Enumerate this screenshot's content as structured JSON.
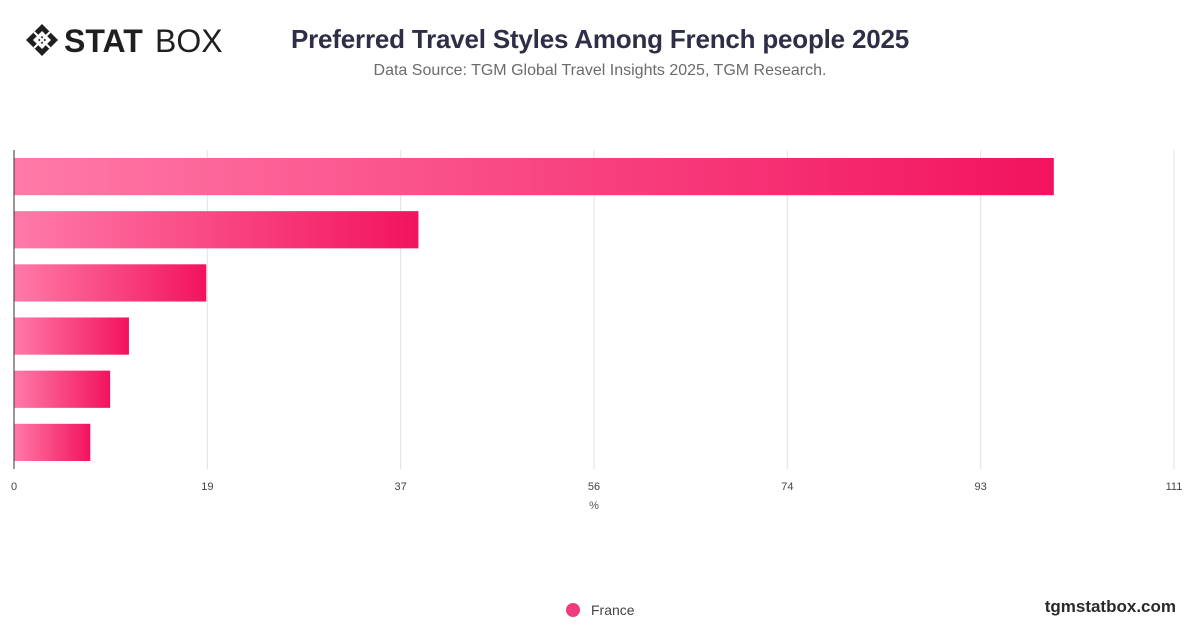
{
  "brand": {
    "logo_text_bold": "STAT",
    "logo_text_light": "BOX",
    "logo_icon": "diamond-grid-icon"
  },
  "header": {
    "title": "Preferred Travel Styles Among French people 2025",
    "subtitle": "Data Source: TGM Global Travel Insights 2025, TGM Research."
  },
  "footer": {
    "watermark": "tgmstatbox.com"
  },
  "colors": {
    "bar_light": "#ff7aa8",
    "bar_dark": "#f2135f",
    "grid": "#e2e2e2",
    "axis": "#333333",
    "legend_dot": "#f03c7c"
  },
  "chart_data": {
    "type": "bar",
    "orientation": "horizontal",
    "title": "Preferred Travel Styles Among French people 2025",
    "subtitle": "Data Source: TGM Global Travel Insights 2025, TGM Research.",
    "xlabel": "%",
    "ylabel": "",
    "xlim": [
      0,
      111
    ],
    "xticks": [
      "0",
      "19",
      "37",
      "56",
      "74",
      "93",
      "111"
    ],
    "tick_values": [
      0,
      18.5,
      37,
      55.5,
      74,
      92.5,
      111
    ],
    "categories": [
      "",
      "",
      "",
      "",
      "",
      ""
    ],
    "series": [
      {
        "name": "France",
        "values": [
          99.5,
          38.7,
          18.4,
          11.0,
          9.2,
          7.3
        ]
      }
    ],
    "grid": true,
    "legend_position": "bottom"
  }
}
